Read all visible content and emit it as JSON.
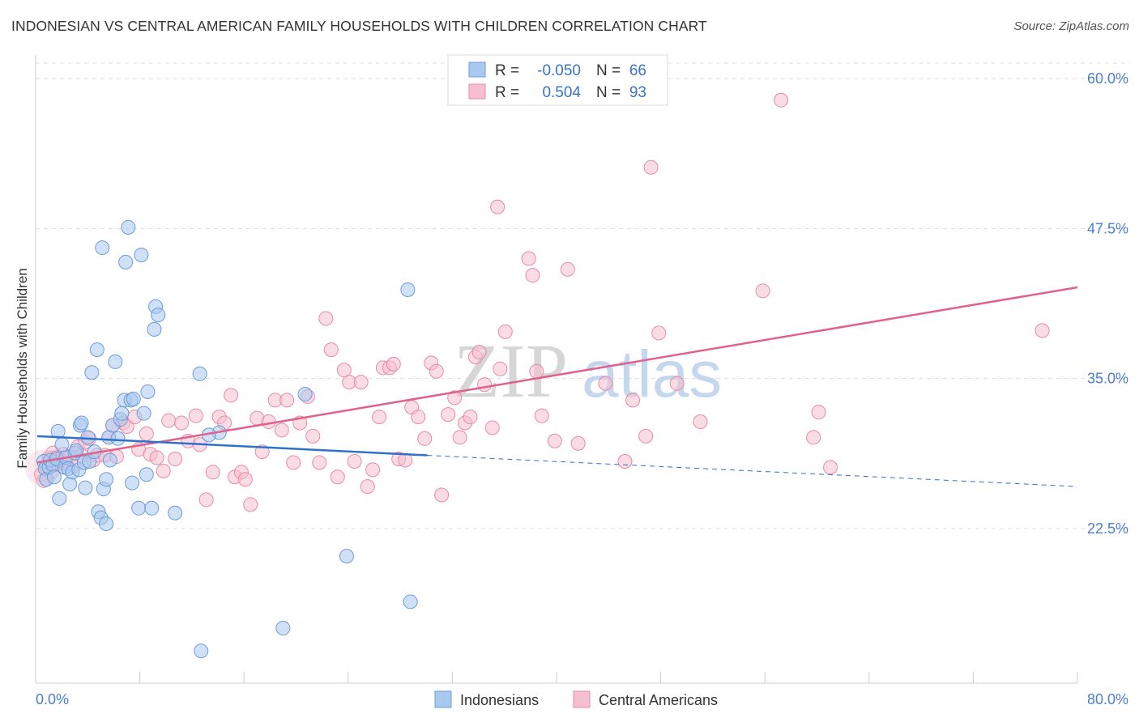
{
  "title": "INDONESIAN VS CENTRAL AMERICAN FAMILY HOUSEHOLDS WITH CHILDREN CORRELATION CHART",
  "source": "Source: ZipAtlas.com",
  "watermark": {
    "zip": "ZIP",
    "atlas": "atlas"
  },
  "colors": {
    "blue_fill": "#a9c8f0",
    "blue_stroke": "#6b9bd8",
    "blue_line": "#2d72cc",
    "pink_fill": "#f6bfd0",
    "pink_stroke": "#e88aa8",
    "pink_line": "#e0628c",
    "tick_label": "#4a7fd0",
    "grid": "#dddddd"
  },
  "legend": {
    "rows": [
      {
        "r_label": "R =",
        "r_value": "-0.050",
        "n_label": "N =",
        "n_value": "66"
      },
      {
        "r_label": "R =",
        "r_value": "0.504",
        "n_label": "N =",
        "n_value": "93"
      }
    ]
  },
  "bottom_legend": [
    "Indonesians",
    "Central Americans"
  ],
  "chart_data": {
    "type": "scatter",
    "title": "INDONESIAN VS CENTRAL AMERICAN FAMILY HOUSEHOLDS WITH CHILDREN CORRELATION CHART",
    "xlabel": "",
    "ylabel": "Family Households with Children",
    "xlim": [
      0,
      80
    ],
    "ylim": [
      12,
      63
    ],
    "x_tick_labels": [
      "0.0%",
      "80.0%"
    ],
    "y_ticks": [
      22.5,
      35.0,
      47.5,
      60.0
    ],
    "y_tick_labels": [
      "22.5%",
      "35.0%",
      "47.5%",
      "60.0%"
    ],
    "grid": true,
    "legend_position": "top-center",
    "series": [
      {
        "name": "Indonesians",
        "r": -0.05,
        "n": 66,
        "trend": {
          "x0": 0,
          "y0": 30.2,
          "x1": 30,
          "y1": 28.6,
          "dashed_to_x": 80,
          "dashed_to_y": 26.0
        },
        "points": [
          [
            0.5,
            28.1
          ],
          [
            0.6,
            27.5
          ],
          [
            0.7,
            26.6
          ],
          [
            0.9,
            27.6
          ],
          [
            1.0,
            28.2
          ],
          [
            1.2,
            27.8
          ],
          [
            1.3,
            26.8
          ],
          [
            1.5,
            28.3
          ],
          [
            1.6,
            30.6
          ],
          [
            1.7,
            25.0
          ],
          [
            1.9,
            29.5
          ],
          [
            2.1,
            27.6
          ],
          [
            2.2,
            28.4
          ],
          [
            2.4,
            27.5
          ],
          [
            2.5,
            26.2
          ],
          [
            2.7,
            27.2
          ],
          [
            2.9,
            28.8
          ],
          [
            3.0,
            29.0
          ],
          [
            3.2,
            27.4
          ],
          [
            3.3,
            31.1
          ],
          [
            3.4,
            31.3
          ],
          [
            3.6,
            28.0
          ],
          [
            3.7,
            25.9
          ],
          [
            3.9,
            30.1
          ],
          [
            4.0,
            28.1
          ],
          [
            4.2,
            35.5
          ],
          [
            4.4,
            28.9
          ],
          [
            4.6,
            37.4
          ],
          [
            4.7,
            23.9
          ],
          [
            4.9,
            23.4
          ],
          [
            5.0,
            45.9
          ],
          [
            5.1,
            25.8
          ],
          [
            5.3,
            26.6
          ],
          [
            5.3,
            22.9
          ],
          [
            5.5,
            30.1
          ],
          [
            5.6,
            28.2
          ],
          [
            5.8,
            31.1
          ],
          [
            6.0,
            36.4
          ],
          [
            6.2,
            30.0
          ],
          [
            6.4,
            31.6
          ],
          [
            6.5,
            32.1
          ],
          [
            6.7,
            33.2
          ],
          [
            6.8,
            44.7
          ],
          [
            7.0,
            47.6
          ],
          [
            7.2,
            33.2
          ],
          [
            7.3,
            26.3
          ],
          [
            7.4,
            33.3
          ],
          [
            7.8,
            24.2
          ],
          [
            8.0,
            45.3
          ],
          [
            8.2,
            32.1
          ],
          [
            8.4,
            27.0
          ],
          [
            8.5,
            33.9
          ],
          [
            8.8,
            24.2
          ],
          [
            9.0,
            39.1
          ],
          [
            9.1,
            41.0
          ],
          [
            9.3,
            40.3
          ],
          [
            10.6,
            23.8
          ],
          [
            12.6,
            12.3
          ],
          [
            12.5,
            35.4
          ],
          [
            14.0,
            30.5
          ],
          [
            13.2,
            30.3
          ],
          [
            18.9,
            14.2
          ],
          [
            20.6,
            33.7
          ],
          [
            23.8,
            20.2
          ],
          [
            28.5,
            42.4
          ],
          [
            28.7,
            16.4
          ]
        ]
      },
      {
        "name": "Central Americans",
        "r": 0.504,
        "n": 93,
        "trend": {
          "x0": 0,
          "y0": 28.0,
          "x1": 80,
          "y1": 42.6
        },
        "points": [
          [
            0.3,
            27.0
          ],
          [
            0.5,
            26.5
          ],
          [
            0.7,
            27.6
          ],
          [
            0.9,
            28.4
          ],
          [
            1.1,
            27.2
          ],
          [
            1.2,
            28.8
          ],
          [
            1.4,
            28.4
          ],
          [
            1.6,
            27.9
          ],
          [
            1.8,
            28.2
          ],
          [
            2.0,
            28.7
          ],
          [
            2.2,
            27.9
          ],
          [
            2.5,
            28.5
          ],
          [
            2.8,
            27.7
          ],
          [
            3.1,
            29.3
          ],
          [
            3.4,
            28.6
          ],
          [
            3.7,
            29.7
          ],
          [
            4.0,
            30.0
          ],
          [
            4.3,
            28.2
          ],
          [
            4.6,
            28.6
          ],
          [
            5.2,
            28.6
          ],
          [
            5.5,
            30.1
          ],
          [
            5.8,
            31.1
          ],
          [
            6.1,
            28.5
          ],
          [
            6.6,
            31.3
          ],
          [
            6.9,
            31.0
          ],
          [
            7.5,
            31.8
          ],
          [
            7.8,
            29.1
          ],
          [
            8.4,
            30.4
          ],
          [
            8.7,
            28.7
          ],
          [
            9.2,
            28.4
          ],
          [
            9.7,
            27.3
          ],
          [
            10.1,
            31.5
          ],
          [
            10.6,
            28.3
          ],
          [
            11.1,
            31.3
          ],
          [
            11.6,
            29.8
          ],
          [
            12.2,
            31.9
          ],
          [
            12.5,
            29.5
          ],
          [
            13.0,
            24.9
          ],
          [
            13.5,
            27.2
          ],
          [
            14.0,
            31.8
          ],
          [
            14.4,
            31.3
          ],
          [
            14.9,
            33.6
          ],
          [
            15.2,
            26.8
          ],
          [
            15.7,
            27.2
          ],
          [
            16.0,
            26.6
          ],
          [
            16.4,
            24.5
          ],
          [
            16.9,
            31.7
          ],
          [
            17.3,
            28.9
          ],
          [
            17.8,
            31.4
          ],
          [
            18.3,
            33.2
          ],
          [
            18.8,
            30.7
          ],
          [
            19.2,
            33.2
          ],
          [
            19.7,
            28.0
          ],
          [
            20.2,
            31.3
          ],
          [
            20.8,
            33.5
          ],
          [
            21.2,
            30.2
          ],
          [
            21.7,
            28.0
          ],
          [
            22.2,
            40.0
          ],
          [
            22.6,
            37.4
          ],
          [
            23.1,
            26.8
          ],
          [
            23.6,
            35.7
          ],
          [
            24.0,
            34.7
          ],
          [
            24.4,
            28.1
          ],
          [
            24.9,
            34.7
          ],
          [
            25.4,
            26.0
          ],
          [
            25.8,
            27.4
          ],
          [
            26.3,
            31.8
          ],
          [
            26.6,
            35.9
          ],
          [
            27.1,
            35.9
          ],
          [
            27.4,
            36.2
          ],
          [
            27.8,
            28.3
          ],
          [
            28.3,
            28.2
          ],
          [
            28.8,
            32.6
          ],
          [
            29.3,
            31.8
          ],
          [
            29.8,
            30.0
          ],
          [
            30.3,
            36.3
          ],
          [
            30.7,
            35.6
          ],
          [
            31.1,
            25.3
          ],
          [
            31.6,
            32.0
          ],
          [
            32.1,
            33.4
          ],
          [
            32.5,
            30.1
          ],
          [
            32.9,
            31.3
          ],
          [
            33.3,
            31.8
          ],
          [
            33.7,
            36.8
          ],
          [
            34.0,
            37.2
          ],
          [
            34.4,
            34.5
          ],
          [
            35.0,
            30.9
          ],
          [
            35.4,
            49.3
          ],
          [
            35.6,
            35.8
          ],
          [
            36.0,
            38.9
          ],
          [
            37.8,
            45.0
          ],
          [
            38.1,
            43.6
          ],
          [
            38.4,
            35.6
          ]
        ]
      },
      {
        "name": "Central Americans (upper)",
        "points": [
          [
            38.8,
            31.9
          ],
          [
            39.8,
            29.8
          ],
          [
            40.8,
            44.1
          ],
          [
            41.6,
            29.6
          ],
          [
            43.7,
            34.6
          ],
          [
            45.2,
            28.1
          ],
          [
            46.8,
            30.2
          ],
          [
            47.2,
            52.6
          ],
          [
            47.8,
            38.8
          ],
          [
            51.0,
            31.4
          ],
          [
            55.8,
            42.3
          ],
          [
            57.2,
            58.2
          ],
          [
            59.7,
            30.1
          ],
          [
            60.1,
            32.2
          ],
          [
            61.0,
            27.6
          ],
          [
            77.3,
            39.0
          ],
          [
            45.8,
            33.2
          ],
          [
            49.2,
            34.6
          ]
        ]
      }
    ]
  },
  "x_tick_positions_count": 11
}
